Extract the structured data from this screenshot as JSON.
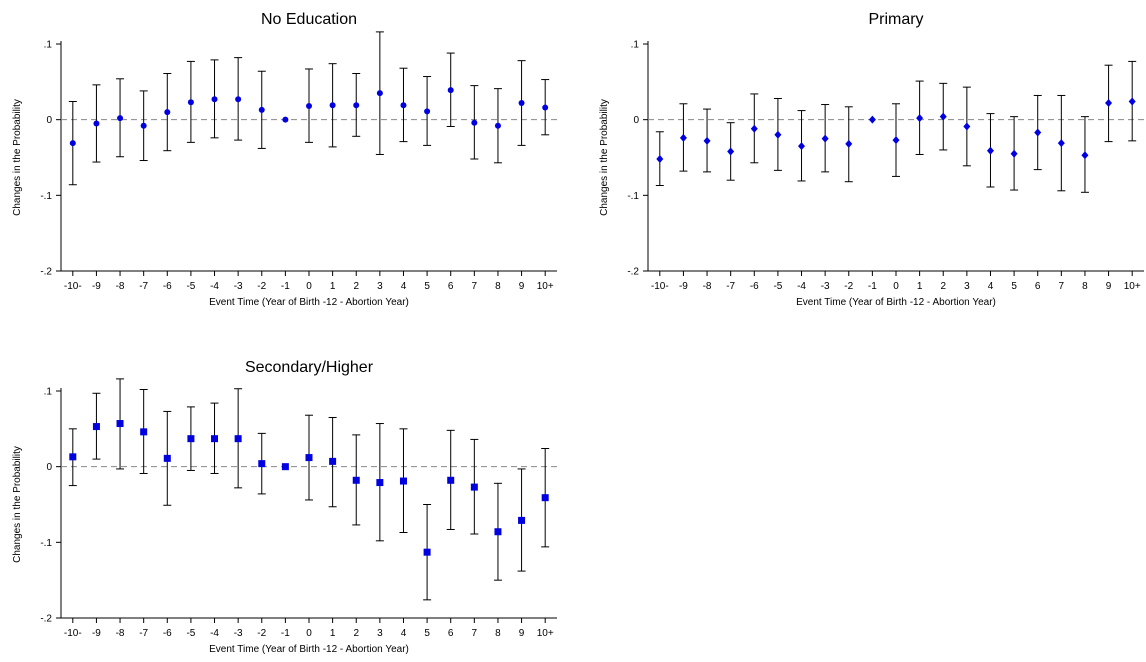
{
  "figure": {
    "colors": {
      "marker": "#0000e0",
      "errorbar": "#000000",
      "zero_line": "#888888"
    }
  },
  "chart_data": [
    {
      "type": "scatter",
      "title": "No Education",
      "xlabel": "Event Time (Year of Birth -12 - Abortion Year)",
      "ylabel": "Changes in the Probability",
      "ylim": [
        -0.2,
        0.1
      ],
      "yticks": [
        -0.2,
        -0.1,
        0,
        0.1
      ],
      "ytick_labels": [
        "-.2",
        "-.1",
        "0",
        ".1"
      ],
      "marker": "circle",
      "reference_line": 0,
      "categories": [
        "-10-",
        "-9",
        "-8",
        "-7",
        "-6",
        "-5",
        "-4",
        "-3",
        "-2",
        "-1",
        "0",
        "1",
        "2",
        "3",
        "4",
        "5",
        "6",
        "7",
        "8",
        "9",
        "10+"
      ],
      "values": [
        -0.031,
        -0.005,
        0.002,
        -0.008,
        0.01,
        0.023,
        0.027,
        0.027,
        0.013,
        0.0,
        0.018,
        0.019,
        0.019,
        0.035,
        0.019,
        0.011,
        0.039,
        -0.004,
        -0.008,
        0.022,
        0.016
      ],
      "ci_low": [
        -0.086,
        -0.056,
        -0.049,
        -0.054,
        -0.041,
        -0.03,
        -0.024,
        -0.027,
        -0.038,
        0.0,
        -0.03,
        -0.036,
        -0.022,
        -0.046,
        -0.029,
        -0.034,
        -0.009,
        -0.052,
        -0.057,
        -0.034,
        -0.02
      ],
      "ci_high": [
        0.024,
        0.046,
        0.054,
        0.038,
        0.061,
        0.077,
        0.079,
        0.082,
        0.064,
        0.0,
        0.067,
        0.074,
        0.061,
        0.116,
        0.068,
        0.057,
        0.088,
        0.045,
        0.041,
        0.078,
        0.053
      ]
    },
    {
      "type": "scatter",
      "title": "Primary",
      "xlabel": "Event Time (Year of Birth -12 - Abortion Year)",
      "ylabel": "Changes in the Probability",
      "ylim": [
        -0.2,
        0.1
      ],
      "yticks": [
        -0.2,
        -0.1,
        0,
        0.1
      ],
      "ytick_labels": [
        "-.2",
        "-.1",
        "0",
        ".1"
      ],
      "marker": "diamond",
      "reference_line": 0,
      "categories": [
        "-10-",
        "-9",
        "-8",
        "-7",
        "-6",
        "-5",
        "-4",
        "-3",
        "-2",
        "-1",
        "0",
        "1",
        "2",
        "3",
        "4",
        "5",
        "6",
        "7",
        "8",
        "9",
        "10+"
      ],
      "values": [
        -0.052,
        -0.024,
        -0.028,
        -0.042,
        -0.012,
        -0.02,
        -0.035,
        -0.025,
        -0.032,
        0.0,
        -0.027,
        0.002,
        0.004,
        -0.009,
        -0.041,
        -0.045,
        -0.017,
        -0.031,
        -0.047,
        0.022,
        0.024
      ],
      "ci_low": [
        -0.087,
        -0.068,
        -0.069,
        -0.08,
        -0.057,
        -0.067,
        -0.081,
        -0.069,
        -0.082,
        0.0,
        -0.075,
        -0.046,
        -0.04,
        -0.061,
        -0.089,
        -0.093,
        -0.066,
        -0.094,
        -0.096,
        -0.029,
        -0.028
      ],
      "ci_high": [
        -0.016,
        0.021,
        0.014,
        -0.004,
        0.034,
        0.028,
        0.012,
        0.02,
        0.017,
        0.0,
        0.021,
        0.051,
        0.048,
        0.043,
        0.008,
        0.004,
        0.032,
        0.032,
        0.004,
        0.072,
        0.077
      ]
    },
    {
      "type": "scatter",
      "title": "Secondary/Higher",
      "xlabel": "Event Time (Year of Birth -12 - Abortion Year)",
      "ylabel": "Changes in the Probability",
      "ylim": [
        -0.2,
        0.1
      ],
      "yticks": [
        -0.2,
        -0.1,
        0,
        0.1
      ],
      "ytick_labels": [
        "-.2",
        "-.1",
        "0",
        ".1"
      ],
      "marker": "square",
      "reference_line": 0,
      "categories": [
        "-10-",
        "-9",
        "-8",
        "-7",
        "-6",
        "-5",
        "-4",
        "-3",
        "-2",
        "-1",
        "0",
        "1",
        "2",
        "3",
        "4",
        "5",
        "6",
        "7",
        "8",
        "9",
        "10+"
      ],
      "values": [
        0.013,
        0.053,
        0.057,
        0.046,
        0.011,
        0.037,
        0.037,
        0.037,
        0.004,
        0.0,
        0.012,
        0.007,
        -0.018,
        -0.021,
        -0.019,
        -0.113,
        -0.018,
        -0.027,
        -0.086,
        -0.071,
        -0.041
      ],
      "ci_low": [
        -0.025,
        0.01,
        -0.003,
        -0.009,
        -0.051,
        -0.005,
        -0.009,
        -0.028,
        -0.036,
        0.0,
        -0.044,
        -0.053,
        -0.077,
        -0.098,
        -0.087,
        -0.176,
        -0.083,
        -0.089,
        -0.15,
        -0.138,
        -0.106
      ],
      "ci_high": [
        0.05,
        0.097,
        0.116,
        0.102,
        0.073,
        0.079,
        0.084,
        0.103,
        0.044,
        0.0,
        0.068,
        0.065,
        0.042,
        0.057,
        0.05,
        -0.05,
        0.048,
        0.036,
        -0.022,
        -0.003,
        0.024
      ]
    }
  ]
}
